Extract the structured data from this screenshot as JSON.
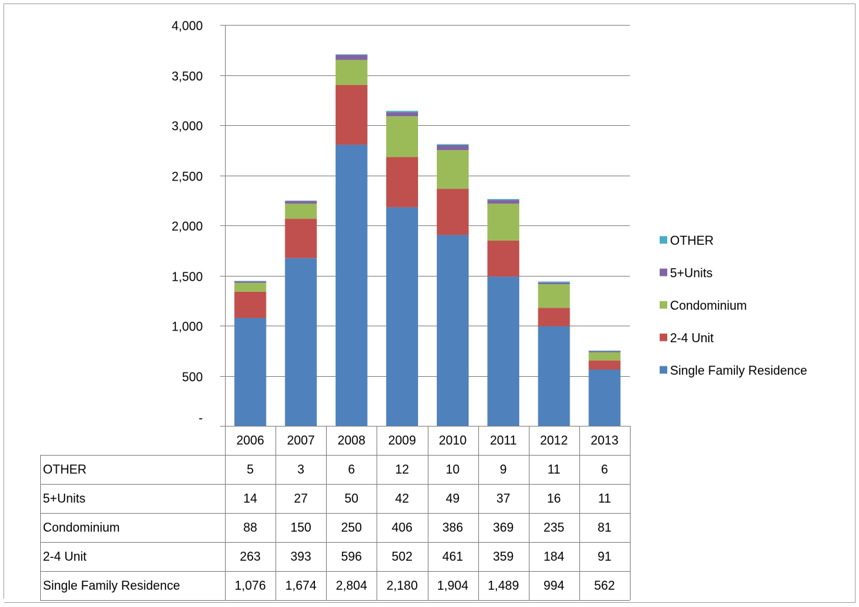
{
  "chart_data": {
    "type": "bar",
    "stacked": true,
    "categories": [
      "2006",
      "2007",
      "2008",
      "2009",
      "2010",
      "2011",
      "2012",
      "2013"
    ],
    "series": [
      {
        "name": "Single Family Residence",
        "color": "#4F81BD",
        "values": [
          1076,
          1674,
          2804,
          2180,
          1904,
          1489,
          994,
          562
        ],
        "labels": [
          "1,076",
          "1,674",
          "2,804",
          "2,180",
          "1,904",
          "1,489",
          "994",
          "562"
        ]
      },
      {
        "name": "2-4 Unit",
        "color": "#C0504D",
        "values": [
          263,
          393,
          596,
          502,
          461,
          359,
          184,
          91
        ],
        "labels": [
          "263",
          "393",
          "596",
          "502",
          "461",
          "359",
          "184",
          "91"
        ]
      },
      {
        "name": "Condominium",
        "color": "#9BBB59",
        "values": [
          88,
          150,
          250,
          406,
          386,
          369,
          235,
          81
        ],
        "labels": [
          "88",
          "150",
          "250",
          "406",
          "386",
          "369",
          "235",
          "81"
        ]
      },
      {
        "name": "5+Units",
        "color": "#8064A2",
        "values": [
          14,
          27,
          50,
          42,
          49,
          37,
          16,
          11
        ],
        "labels": [
          "14",
          "27",
          "50",
          "42",
          "49",
          "37",
          "16",
          "11"
        ]
      },
      {
        "name": "OTHER",
        "color": "#4BACC6",
        "values": [
          5,
          3,
          6,
          12,
          10,
          9,
          11,
          6
        ],
        "labels": [
          "5",
          "3",
          "6",
          "12",
          "10",
          "9",
          "11",
          "6"
        ]
      }
    ],
    "table_row_order": [
      "OTHER",
      "5+Units",
      "Condominium",
      "2-4 Unit",
      "Single Family Residence"
    ],
    "legend_order": [
      "OTHER",
      "5+Units",
      "Condominium",
      "2-4 Unit",
      "Single Family Residence"
    ],
    "ylim": [
      0,
      4000
    ],
    "yticks": [
      0,
      500,
      1000,
      1500,
      2000,
      2500,
      3000,
      3500,
      4000
    ],
    "ytick_labels": [
      "-",
      "500",
      "1,000",
      "1,500",
      "2,000",
      "2,500",
      "3,000",
      "3,500",
      "4,000"
    ],
    "grid": true,
    "legend_position": "right",
    "data_table": true,
    "title": "",
    "xlabel": "",
    "ylabel": ""
  }
}
